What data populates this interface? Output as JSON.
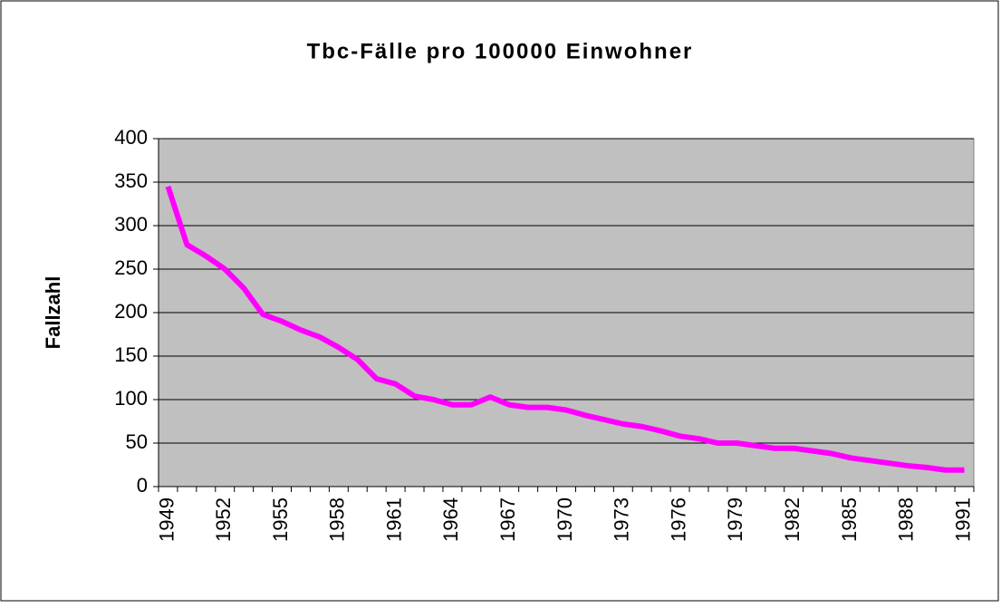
{
  "chart_data": {
    "type": "line",
    "title": "Tbc-Fälle pro 100000 Einwohner",
    "y_label": "Fallzahl",
    "categories": [
      "1949",
      null,
      null,
      "1952",
      null,
      null,
      "1955",
      null,
      null,
      "1958",
      null,
      null,
      "1961",
      null,
      null,
      "1964",
      null,
      null,
      "1967",
      null,
      null,
      "1970",
      null,
      null,
      "1973",
      null,
      null,
      "1976",
      null,
      null,
      "1979",
      null,
      null,
      "1982",
      null,
      null,
      "1985",
      null,
      null,
      "1988",
      null,
      null,
      "1991"
    ],
    "values": [
      345,
      278,
      265,
      250,
      228,
      198,
      190,
      180,
      172,
      160,
      146,
      124,
      118,
      104,
      100,
      94,
      94,
      103,
      94,
      91,
      91,
      88,
      82,
      77,
      72,
      69,
      64,
      58,
      55,
      50,
      50,
      47,
      44,
      44,
      41,
      38,
      33,
      30,
      27,
      24,
      22,
      19,
      19
    ],
    "color": "#ff00ff",
    "ylim": [
      0,
      400
    ],
    "yticks": [
      0,
      50,
      100,
      150,
      200,
      250,
      300,
      350,
      400
    ],
    "grid": true
  }
}
